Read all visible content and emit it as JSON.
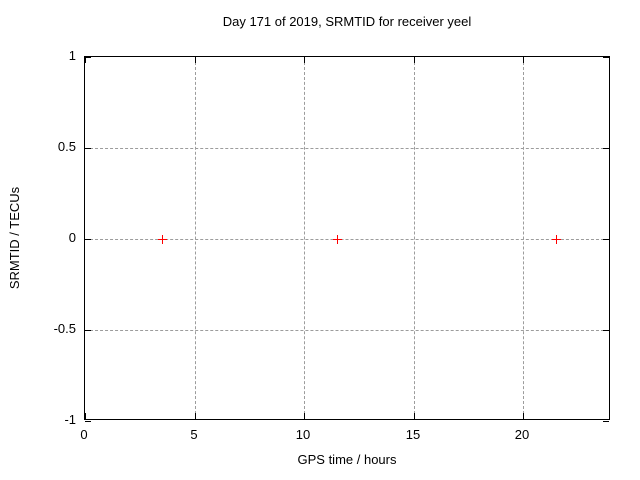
{
  "chart_data": {
    "type": "scatter",
    "title": "Day 171 of 2019, SRMTID for receiver yeel",
    "xlabel": "GPS time / hours",
    "ylabel": "SRMTID / TECUs",
    "xlim": [
      0,
      24
    ],
    "ylim": [
      -1,
      1
    ],
    "xticks": [
      0,
      5,
      10,
      15,
      20
    ],
    "xtick_labels": [
      "0",
      "5",
      "10",
      "15",
      "20"
    ],
    "yticks": [
      1,
      0.5,
      0,
      -0.5,
      -1
    ],
    "ytick_labels": [
      "1",
      "0.5",
      "0",
      "-0.5",
      "-1"
    ],
    "grid": true,
    "legend": false,
    "series": [
      {
        "name": "",
        "marker": "plus",
        "color": "#ff0000",
        "points": [
          [
            3.5,
            0.0
          ],
          [
            11.5,
            0.0
          ],
          [
            21.5,
            0.0
          ]
        ]
      }
    ],
    "colors": {
      "background": "#ffffff",
      "frame": "#000000",
      "grid": "#9c9c9c",
      "text": "#000000"
    }
  }
}
